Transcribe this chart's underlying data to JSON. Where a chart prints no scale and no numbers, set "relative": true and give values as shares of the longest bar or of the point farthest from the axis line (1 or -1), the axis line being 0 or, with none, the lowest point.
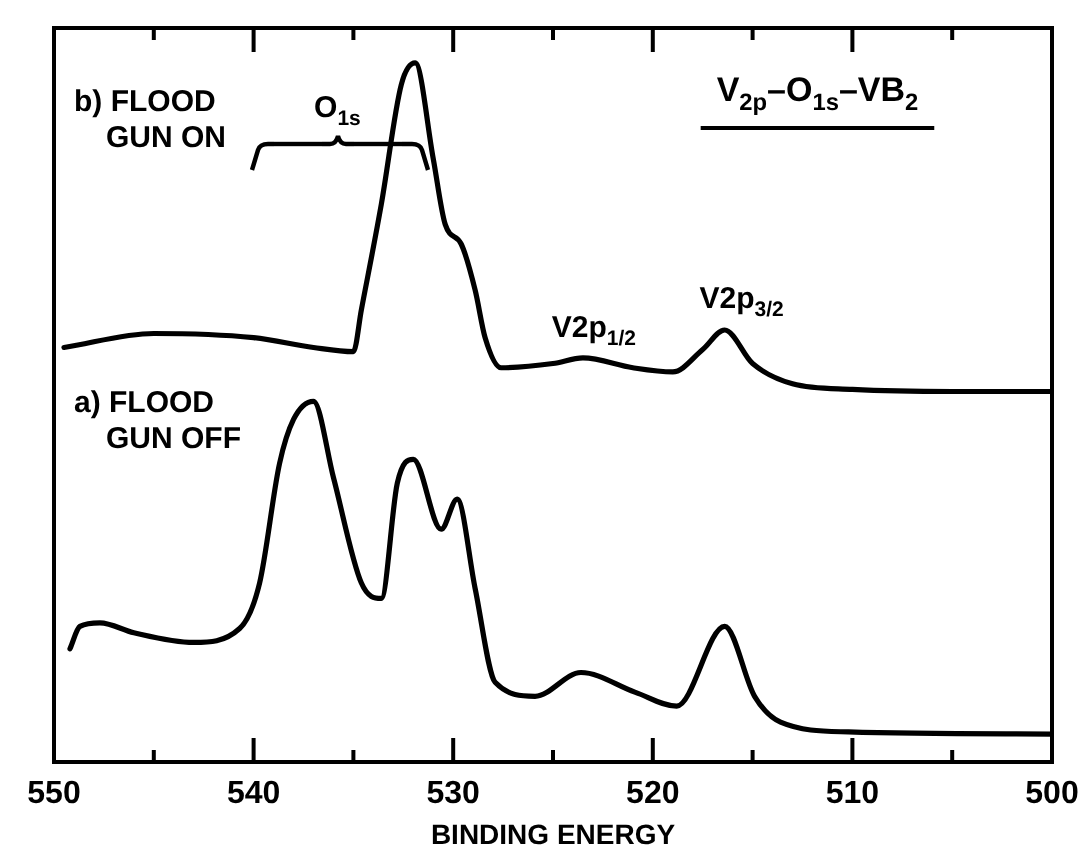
{
  "chart_data": {
    "type": "line",
    "title": "V$_{2p}$–O$_{1s}$–VB$_{2}$",
    "xlabel": "BINDING ENERGY",
    "relative": true,
    "xlim": [
      550,
      500
    ],
    "xticks": [
      550,
      {
        "value": 545,
        "label": null
      },
      540,
      {
        "value": 535,
        "label": null
      },
      530,
      {
        "value": 525,
        "label": null
      },
      520,
      {
        "value": 515,
        "label": null
      },
      510,
      {
        "value": 505,
        "label": null
      },
      500
    ],
    "series": [
      {
        "name": "b) FLOOD GUN ON",
        "color": "#000000",
        "x": [
          549.5,
          545,
          540,
          537,
          535,
          534.6,
          533.6,
          532.6,
          531.9,
          531,
          530.4,
          529.6,
          528.9,
          528.4,
          527.6,
          525,
          523.5,
          521,
          519,
          517.5,
          516.4,
          515,
          513,
          510,
          505,
          500
        ],
        "values": [
          0.593,
          0.613,
          0.607,
          0.593,
          0.587,
          0.647,
          0.798,
          0.969,
          1.0,
          0.863,
          0.769,
          0.741,
          0.675,
          0.607,
          0.564,
          0.57,
          0.578,
          0.564,
          0.558,
          0.59,
          0.618,
          0.57,
          0.541,
          0.533,
          0.53,
          0.53
        ]
      },
      {
        "name": "a) FLOOD GUN OFF",
        "color": "#000000",
        "x": [
          549.2,
          548.7,
          547.7,
          546,
          543,
          540.7,
          539.7,
          538.7,
          538,
          537,
          536,
          534.6,
          533.6,
          532.8,
          532,
          530.6,
          529.8,
          528.9,
          527.9,
          525.9,
          523.6,
          520.9,
          518.8,
          516.4,
          514.9,
          513.6,
          510.2,
          500
        ],
        "values": [
          0.162,
          0.194,
          0.199,
          0.185,
          0.171,
          0.191,
          0.256,
          0.427,
          0.49,
          0.516,
          0.407,
          0.256,
          0.234,
          0.399,
          0.433,
          0.333,
          0.376,
          0.248,
          0.114,
          0.094,
          0.128,
          0.1,
          0.08,
          0.194,
          0.094,
          0.057,
          0.043,
          0.04
        ]
      }
    ],
    "annotations": [
      "O$_{1s}$",
      "V2p$_{1/2}$",
      "V2p$_{3/2}$"
    ],
    "marker": "none",
    "line_style": "solid"
  }
}
